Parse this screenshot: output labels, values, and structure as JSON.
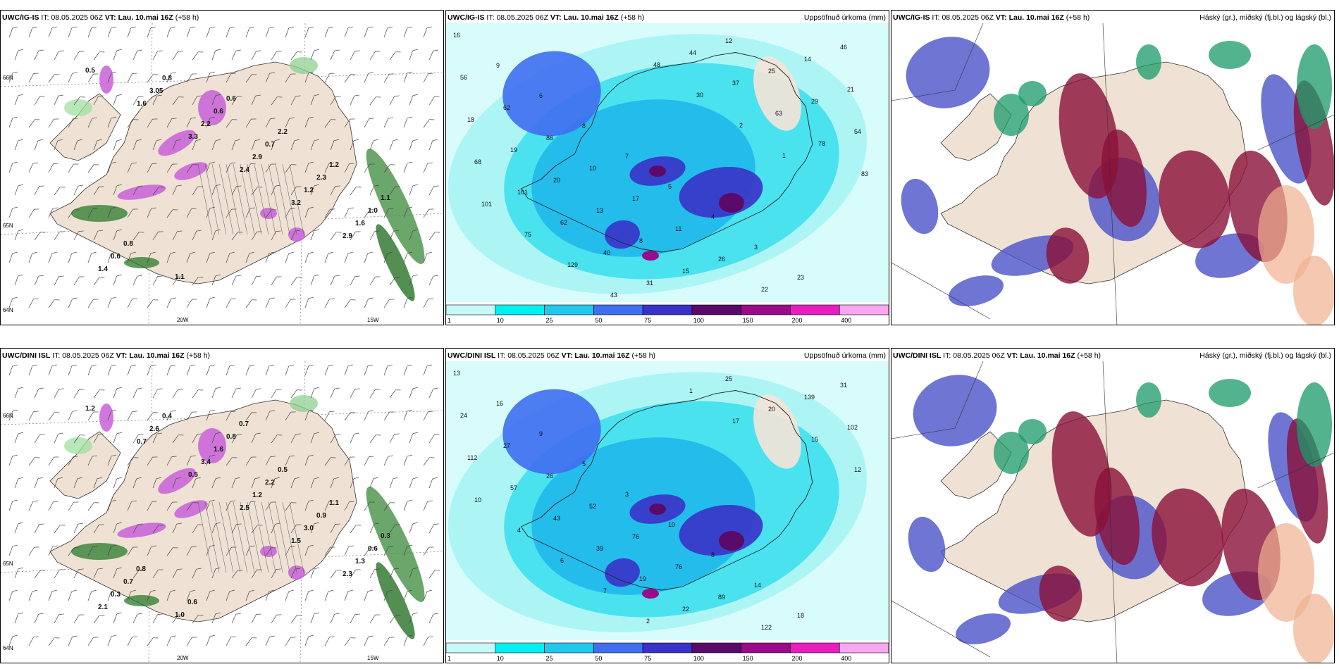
{
  "rows": [
    {
      "model": "UWC/IG-IS",
      "it_label": "IT:",
      "it": "08.05.2025 06Z",
      "vt_label": "VT:",
      "vt": "Lau. 10.mai 16Z",
      "lead": "(+58 h)"
    },
    {
      "model": "UWC/DINI ISL",
      "it_label": "IT:",
      "it": "08.05.2025 06Z",
      "vt_label": "VT:",
      "vt": "Lau. 10.mai 16Z",
      "lead": "(+58 h)"
    }
  ],
  "titles": {
    "precip": "Uppsöfnuð úrkoma (mm)",
    "cloud": "Háský (gr.), miðský (fj.bl.) og lágský (bl.)"
  },
  "axis": {
    "lat66": "66N",
    "lat64": "64N",
    "lat65": "65N",
    "lon20": "20W",
    "lon15": "15W"
  },
  "colorbar": {
    "levels": [
      "1",
      "10",
      "25",
      "50",
      "75",
      "100",
      "150",
      "200",
      "400"
    ],
    "colors": [
      "#c8f8f8",
      "#00f0f0",
      "#20c8ee",
      "#3f6ef0",
      "#3a32c8",
      "#5a0a68",
      "#9a0a8a",
      "#e81ec0",
      "#f8a8f0"
    ]
  },
  "p1_labels": [
    "0.5",
    "1.6",
    "3.3",
    "2.4",
    "3.2",
    "2.9",
    "1.4",
    "3.05",
    "2.2",
    "2.9",
    "1.2",
    "1.6",
    "0.6",
    "0.8",
    "0.6",
    "0.7",
    "2.3",
    "1.0",
    "0.8",
    "1.1",
    "0.6",
    "2.2",
    "1.2",
    "1.1"
  ],
  "p2_labels": [
    "16",
    "9",
    "6",
    "8",
    "7",
    "5",
    "4",
    "3",
    "23",
    "46",
    "56",
    "62",
    "86",
    "10",
    "17",
    "11",
    "26",
    "22",
    "14",
    "21",
    "18",
    "19",
    "20",
    "13",
    "8",
    "15",
    "12",
    "25",
    "29",
    "54",
    "68",
    "101",
    "62",
    "40",
    "31",
    "44",
    "37",
    "63",
    "78",
    "83",
    "101",
    "75",
    "129",
    "43",
    "48",
    "30",
    "2",
    "1"
  ],
  "p4_labels": [
    "1.2",
    "0.7",
    "0.5",
    "2.5",
    "1.5",
    "2.3",
    "2.1",
    "2.6",
    "3.4",
    "1.2",
    "3.0",
    "1.3",
    "0.3",
    "0.4",
    "1.6",
    "2.2",
    "0.9",
    "0.6",
    "0.7",
    "1.0",
    "0.8",
    "0.5",
    "1.1",
    "0.3",
    "0.8",
    "0.6",
    "0.7"
  ],
  "p5_labels": [
    "13",
    "16",
    "9",
    "5",
    "3",
    "10",
    "8",
    "14",
    "18",
    "31",
    "24",
    "27",
    "26",
    "52",
    "76",
    "76",
    "89",
    "122",
    "139",
    "102",
    "112",
    "57",
    "43",
    "39",
    "19",
    "22",
    "25",
    "20",
    "15",
    "12",
    "10",
    "4",
    "6",
    "7",
    "2",
    "1",
    "17"
  ]
}
